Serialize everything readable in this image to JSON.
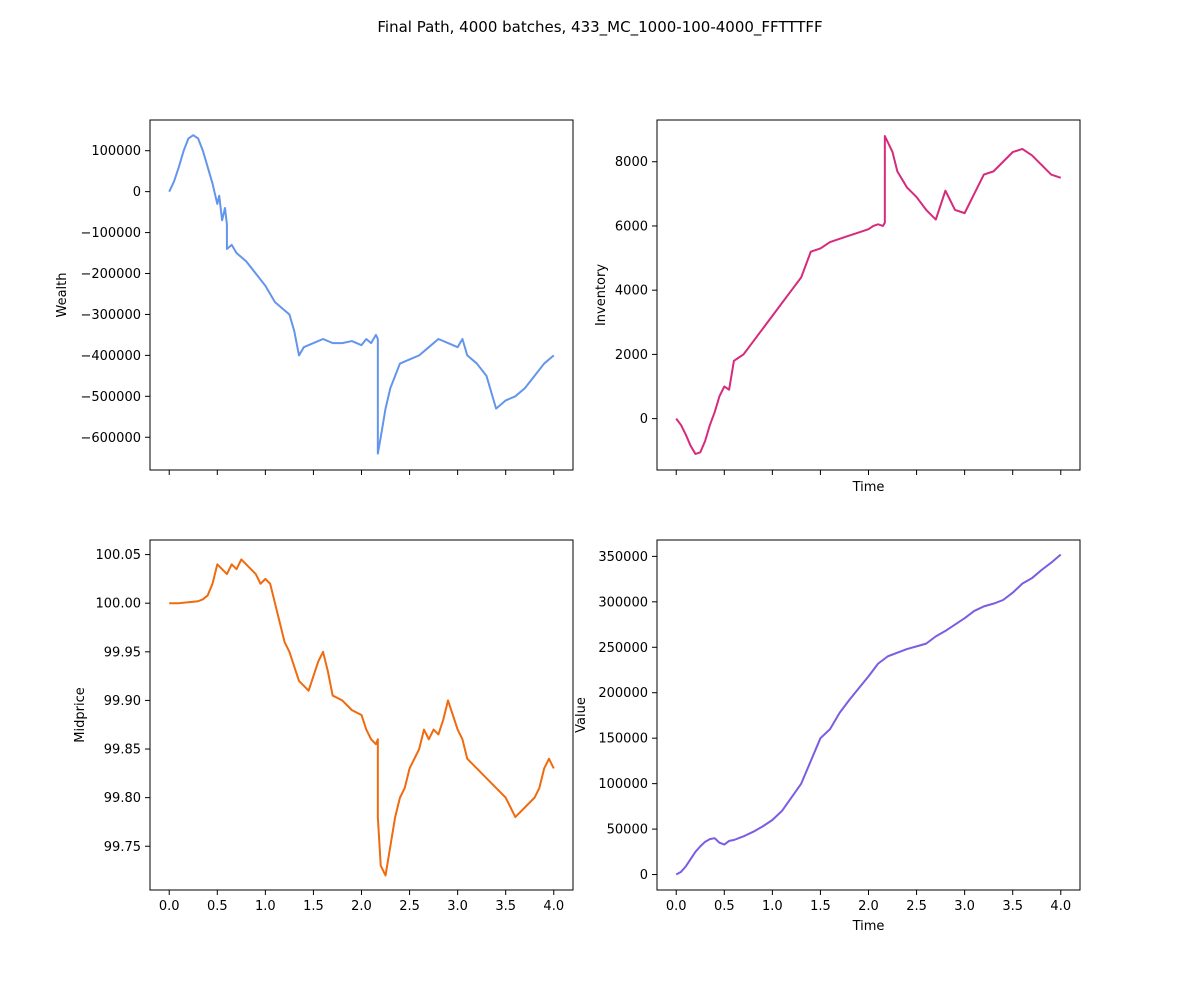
{
  "figure": {
    "title": "Final Path, 4000 batches, 433_MC_1000-100-4000_FFTTTFF"
  },
  "chart_data": [
    {
      "type": "line",
      "name": "wealth-chart",
      "xlabel": "",
      "ylabel": "Wealth",
      "color": "#6495ED",
      "xlim": [
        -0.2,
        4.2
      ],
      "ylim": [
        -680000,
        175000
      ],
      "xticks": [
        0.0,
        0.5,
        1.0,
        1.5,
        2.0,
        2.5,
        3.0,
        3.5,
        4.0
      ],
      "xtick_labels_visible": false,
      "yticks": [
        100000,
        0,
        -100000,
        -200000,
        -300000,
        -400000,
        -500000,
        -600000
      ],
      "ytick_labels": [
        "100000",
        "0",
        "−100000",
        "−200000",
        "−300000",
        "−400000",
        "−500000",
        "−600000"
      ],
      "x": [
        0.0,
        0.05,
        0.1,
        0.15,
        0.2,
        0.25,
        0.3,
        0.35,
        0.4,
        0.45,
        0.5,
        0.52,
        0.55,
        0.58,
        0.6,
        0.6,
        0.65,
        0.7,
        0.8,
        0.9,
        1.0,
        1.1,
        1.2,
        1.25,
        1.3,
        1.35,
        1.4,
        1.5,
        1.6,
        1.7,
        1.8,
        1.9,
        2.0,
        2.05,
        2.1,
        2.15,
        2.17,
        2.17,
        2.2,
        2.25,
        2.3,
        2.4,
        2.5,
        2.6,
        2.7,
        2.8,
        2.9,
        3.0,
        3.05,
        3.1,
        3.2,
        3.3,
        3.4,
        3.5,
        3.6,
        3.7,
        3.8,
        3.9,
        4.0
      ],
      "y": [
        0,
        25000,
        60000,
        100000,
        130000,
        138000,
        130000,
        100000,
        60000,
        20000,
        -30000,
        -10000,
        -70000,
        -40000,
        -80000,
        -140000,
        -130000,
        -150000,
        -170000,
        -200000,
        -230000,
        -270000,
        -290000,
        -300000,
        -340000,
        -400000,
        -380000,
        -370000,
        -360000,
        -370000,
        -370000,
        -365000,
        -375000,
        -360000,
        -370000,
        -350000,
        -360000,
        -640000,
        -600000,
        -530000,
        -480000,
        -420000,
        -410000,
        -400000,
        -380000,
        -360000,
        -370000,
        -380000,
        -360000,
        -400000,
        -420000,
        -450000,
        -530000,
        -510000,
        -500000,
        -480000,
        -450000,
        -420000,
        -400000
      ]
    },
    {
      "type": "line",
      "name": "inventory-chart",
      "xlabel": "Time",
      "ylabel": "Inventory",
      "color": "#D62A7D",
      "xlim": [
        -0.2,
        4.2
      ],
      "ylim": [
        -1600,
        9300
      ],
      "xticks": [
        0.0,
        0.5,
        1.0,
        1.5,
        2.0,
        2.5,
        3.0,
        3.5,
        4.0
      ],
      "xtick_labels_visible": false,
      "yticks": [
        8000,
        6000,
        4000,
        2000,
        0
      ],
      "ytick_labels": [
        "8000",
        "6000",
        "4000",
        "2000",
        "0"
      ],
      "x": [
        0.0,
        0.05,
        0.1,
        0.15,
        0.2,
        0.25,
        0.3,
        0.35,
        0.4,
        0.45,
        0.5,
        0.55,
        0.6,
        0.65,
        0.7,
        0.8,
        0.9,
        1.0,
        1.1,
        1.2,
        1.3,
        1.4,
        1.5,
        1.6,
        1.7,
        1.8,
        1.9,
        2.0,
        2.05,
        2.1,
        2.15,
        2.17,
        2.17,
        2.25,
        2.3,
        2.4,
        2.5,
        2.6,
        2.7,
        2.8,
        2.9,
        3.0,
        3.1,
        3.2,
        3.3,
        3.4,
        3.5,
        3.6,
        3.7,
        3.8,
        3.9,
        4.0
      ],
      "y": [
        0,
        -200,
        -500,
        -850,
        -1100,
        -1050,
        -700,
        -200,
        200,
        700,
        1000,
        900,
        1800,
        1900,
        2000,
        2400,
        2800,
        3200,
        3600,
        4000,
        4400,
        5200,
        5300,
        5500,
        5600,
        5700,
        5800,
        5900,
        6000,
        6050,
        6000,
        6100,
        8800,
        8300,
        7700,
        7200,
        6900,
        6500,
        6200,
        7100,
        6500,
        6400,
        7000,
        7600,
        7700,
        8000,
        8300,
        8400,
        8200,
        7900,
        7600,
        7500
      ]
    },
    {
      "type": "line",
      "name": "midprice-chart",
      "xlabel": "",
      "ylabel": "Midprice",
      "color": "#F06A0F",
      "xlim": [
        -0.2,
        4.2
      ],
      "ylim": [
        99.705,
        100.065
      ],
      "xticks": [
        0.0,
        0.5,
        1.0,
        1.5,
        2.0,
        2.5,
        3.0,
        3.5,
        4.0
      ],
      "xtick_labels": [
        "0.0",
        "0.5",
        "1.0",
        "1.5",
        "2.0",
        "2.5",
        "3.0",
        "3.5",
        "4.0"
      ],
      "yticks": [
        100.05,
        100.0,
        99.95,
        99.9,
        99.85,
        99.8,
        99.75
      ],
      "ytick_labels": [
        "100.05",
        "100.00",
        "99.95",
        "99.90",
        "99.85",
        "99.80",
        "99.75"
      ],
      "x": [
        0.0,
        0.1,
        0.2,
        0.3,
        0.35,
        0.4,
        0.45,
        0.5,
        0.55,
        0.6,
        0.65,
        0.7,
        0.75,
        0.8,
        0.85,
        0.9,
        0.95,
        1.0,
        1.05,
        1.1,
        1.15,
        1.2,
        1.25,
        1.3,
        1.35,
        1.4,
        1.45,
        1.5,
        1.55,
        1.6,
        1.65,
        1.7,
        1.8,
        1.9,
        2.0,
        2.05,
        2.1,
        2.15,
        2.17,
        2.17,
        2.2,
        2.25,
        2.3,
        2.35,
        2.4,
        2.45,
        2.5,
        2.55,
        2.6,
        2.65,
        2.7,
        2.75,
        2.8,
        2.85,
        2.9,
        2.95,
        3.0,
        3.05,
        3.1,
        3.2,
        3.3,
        3.4,
        3.5,
        3.55,
        3.6,
        3.7,
        3.8,
        3.85,
        3.9,
        3.95,
        4.0
      ],
      "y": [
        100.0,
        100.0,
        100.001,
        100.002,
        100.004,
        100.008,
        100.02,
        100.04,
        100.035,
        100.03,
        100.04,
        100.035,
        100.045,
        100.04,
        100.035,
        100.03,
        100.02,
        100.025,
        100.02,
        100.0,
        99.98,
        99.96,
        99.95,
        99.935,
        99.92,
        99.915,
        99.91,
        99.925,
        99.94,
        99.95,
        99.93,
        99.905,
        99.9,
        99.89,
        99.885,
        99.87,
        99.86,
        99.855,
        99.86,
        99.78,
        99.73,
        99.72,
        99.75,
        99.78,
        99.8,
        99.81,
        99.83,
        99.84,
        99.85,
        99.87,
        99.86,
        99.87,
        99.865,
        99.88,
        99.9,
        99.885,
        99.87,
        99.86,
        99.84,
        99.83,
        99.82,
        99.81,
        99.8,
        99.79,
        99.78,
        99.79,
        99.8,
        99.81,
        99.83,
        99.84,
        99.83
      ]
    },
    {
      "type": "line",
      "name": "value-chart",
      "xlabel": "Time",
      "ylabel": "Value",
      "color": "#7B5CE3",
      "xlim": [
        -0.2,
        4.2
      ],
      "ylim": [
        -17000,
        368000
      ],
      "xticks": [
        0.0,
        0.5,
        1.0,
        1.5,
        2.0,
        2.5,
        3.0,
        3.5,
        4.0
      ],
      "xtick_labels": [
        "0.0",
        "0.5",
        "1.0",
        "1.5",
        "2.0",
        "2.5",
        "3.0",
        "3.5",
        "4.0"
      ],
      "yticks": [
        350000,
        300000,
        250000,
        200000,
        150000,
        100000,
        50000,
        0
      ],
      "ytick_labels": [
        "350000",
        "300000",
        "250000",
        "200000",
        "150000",
        "100000",
        "50000",
        "0"
      ],
      "x": [
        0.0,
        0.05,
        0.1,
        0.15,
        0.2,
        0.25,
        0.3,
        0.35,
        0.4,
        0.45,
        0.5,
        0.55,
        0.6,
        0.7,
        0.8,
        0.9,
        1.0,
        1.1,
        1.2,
        1.3,
        1.4,
        1.5,
        1.6,
        1.7,
        1.8,
        1.9,
        2.0,
        2.1,
        2.2,
        2.3,
        2.4,
        2.5,
        2.6,
        2.7,
        2.8,
        2.9,
        3.0,
        3.1,
        3.2,
        3.3,
        3.4,
        3.5,
        3.6,
        3.7,
        3.8,
        3.9,
        4.0
      ],
      "y": [
        0,
        3000,
        9000,
        17000,
        25000,
        31000,
        36000,
        39000,
        40000,
        35000,
        33000,
        37000,
        38000,
        42000,
        47000,
        53000,
        60000,
        70000,
        85000,
        100000,
        125000,
        150000,
        160000,
        178000,
        192000,
        205000,
        218000,
        232000,
        240000,
        244000,
        248000,
        251000,
        254000,
        262000,
        268000,
        275000,
        282000,
        290000,
        295000,
        298000,
        302000,
        310000,
        320000,
        326000,
        335000,
        343000,
        352000
      ]
    }
  ]
}
